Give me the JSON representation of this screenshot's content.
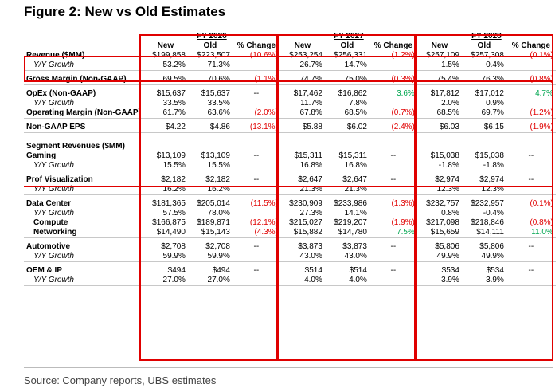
{
  "title": "Figure 2: New vs Old Estimates",
  "source": "Source: Company reports, UBS estimates",
  "colors": {
    "box": "#e00000",
    "negative": "#e00000",
    "positive": "#00a650"
  },
  "years": [
    "FY 2026",
    "FY 2027",
    "FY 2028"
  ],
  "col_headers": [
    "New",
    "Old",
    "% Change"
  ],
  "rows": [
    {
      "label": "Revenue ($MM)",
      "style": "bold",
      "vals": [
        "$199,858",
        "$223,507",
        "(10.6%)",
        "$253,254",
        "$256,331",
        "(1.2%)",
        "$257,109",
        "$257,308",
        "(0.1%)"
      ],
      "chg": [
        "neg",
        "neg",
        "neg"
      ]
    },
    {
      "label": "Y/Y Growth",
      "style": "ital",
      "vals": [
        "53.2%",
        "71.3%",
        "",
        "26.7%",
        "14.7%",
        "",
        "1.5%",
        "0.4%",
        ""
      ],
      "sep": true
    },
    {
      "spacer": true
    },
    {
      "label": "Gross Margin (Non-GAAP)",
      "style": "bold",
      "vals": [
        "69.5%",
        "70.6%",
        "(1.1%)",
        "74.7%",
        "75.0%",
        "(0.3%)",
        "75.4%",
        "76.3%",
        "(0.8%)"
      ],
      "chg": [
        "neg",
        "neg",
        "neg"
      ],
      "sep": true
    },
    {
      "spacer": true
    },
    {
      "label": "OpEx (Non-GAAP)",
      "style": "bold",
      "vals": [
        "$15,637",
        "$15,637",
        "--",
        "$17,462",
        "$16,862",
        "3.6%",
        "$17,812",
        "$17,012",
        "4.7%"
      ],
      "chg": [
        "none",
        "pos",
        "pos"
      ]
    },
    {
      "label": "Y/Y Growth",
      "style": "ital",
      "vals": [
        "33.5%",
        "33.5%",
        "",
        "11.7%",
        "7.8%",
        "",
        "2.0%",
        "0.9%",
        ""
      ]
    },
    {
      "label": "Operating Margin (Non-GAAP)",
      "style": "bold",
      "vals": [
        "61.7%",
        "63.6%",
        "(2.0%)",
        "67.8%",
        "68.5%",
        "(0.7%)",
        "68.5%",
        "69.7%",
        "(1.2%)"
      ],
      "chg": [
        "neg",
        "neg",
        "neg"
      ],
      "sep": true
    },
    {
      "spacer": true
    },
    {
      "label": "Non-GAAP EPS",
      "style": "bold",
      "vals": [
        "$4.22",
        "$4.86",
        "(13.1%)",
        "$5.88",
        "$6.02",
        "(2.4%)",
        "$6.03",
        "$6.15",
        "(1.9%)"
      ],
      "chg": [
        "neg",
        "neg",
        "neg"
      ],
      "sep": true
    },
    {
      "spacer": true,
      "big": true
    },
    {
      "label": "Segment Revenues ($MM)",
      "style": "bold",
      "vals": [
        "",
        "",
        "",
        "",
        "",
        "",
        "",
        "",
        ""
      ]
    },
    {
      "label": "Gaming",
      "style": "bold",
      "vals": [
        "$13,109",
        "$13,109",
        "--",
        "$15,311",
        "$15,311",
        "--",
        "$15,038",
        "$15,038",
        "--"
      ],
      "chg": [
        "none",
        "none",
        "none"
      ]
    },
    {
      "label": "Y/Y Growth",
      "style": "ital",
      "vals": [
        "15.5%",
        "15.5%",
        "",
        "16.8%",
        "16.8%",
        "",
        "-1.8%",
        "-1.8%",
        ""
      ],
      "sep": true
    },
    {
      "spacer": true
    },
    {
      "label": "Prof Visualization",
      "style": "bold",
      "vals": [
        "$2,182",
        "$2,182",
        "--",
        "$2,647",
        "$2,647",
        "--",
        "$2,974",
        "$2,974",
        "--"
      ],
      "chg": [
        "none",
        "none",
        "none"
      ]
    },
    {
      "label": "Y/Y Growth",
      "style": "ital",
      "vals": [
        "16.2%",
        "16.2%",
        "",
        "21.3%",
        "21.3%",
        "",
        "12.3%",
        "12.3%",
        ""
      ],
      "sep": true
    },
    {
      "spacer": true
    },
    {
      "label": "Data Center",
      "style": "bold",
      "vals": [
        "$181,365",
        "$205,014",
        "(11.5%)",
        "$230,909",
        "$233,986",
        "(1.3%)",
        "$232,757",
        "$232,957",
        "(0.1%)"
      ],
      "chg": [
        "neg",
        "neg",
        "neg"
      ]
    },
    {
      "label": "Y/Y Growth",
      "style": "ital",
      "vals": [
        "57.5%",
        "78.0%",
        "",
        "27.3%",
        "14.1%",
        "",
        "0.8%",
        "-0.4%",
        ""
      ]
    },
    {
      "label": "Compute",
      "style": "bold-ind",
      "vals": [
        "$166,875",
        "$189,871",
        "(12.1%)",
        "$215,027",
        "$219,207",
        "(1.9%)",
        "$217,098",
        "$218,846",
        "(0.8%)"
      ],
      "chg": [
        "neg",
        "neg",
        "neg"
      ]
    },
    {
      "label": "Networking",
      "style": "bold-ind",
      "vals": [
        "$14,490",
        "$15,143",
        "(4.3%)",
        "$15,882",
        "$14,780",
        "7.5%",
        "$15,659",
        "$14,111",
        "11.0%"
      ],
      "chg": [
        "neg",
        "pos",
        "pos"
      ],
      "sep": true
    },
    {
      "spacer": true
    },
    {
      "label": "Automotive",
      "style": "bold",
      "vals": [
        "$2,708",
        "$2,708",
        "--",
        "$3,873",
        "$3,873",
        "--",
        "$5,806",
        "$5,806",
        "--"
      ],
      "chg": [
        "none",
        "none",
        "none"
      ]
    },
    {
      "label": "Y/Y Growth",
      "style": "ital",
      "vals": [
        "59.9%",
        "59.9%",
        "",
        "43.0%",
        "43.0%",
        "",
        "49.9%",
        "49.9%",
        ""
      ],
      "sep": true
    },
    {
      "spacer": true
    },
    {
      "label": "OEM & IP",
      "style": "bold",
      "vals": [
        "$494",
        "$494",
        "--",
        "$514",
        "$514",
        "--",
        "$534",
        "$534",
        "--"
      ],
      "chg": [
        "none",
        "none",
        "none"
      ]
    },
    {
      "label": "Y/Y Growth",
      "style": "ital",
      "vals": [
        "27.0%",
        "27.0%",
        "",
        "4.0%",
        "4.0%",
        "",
        "3.9%",
        "3.9%",
        ""
      ],
      "sep": true
    }
  ]
}
